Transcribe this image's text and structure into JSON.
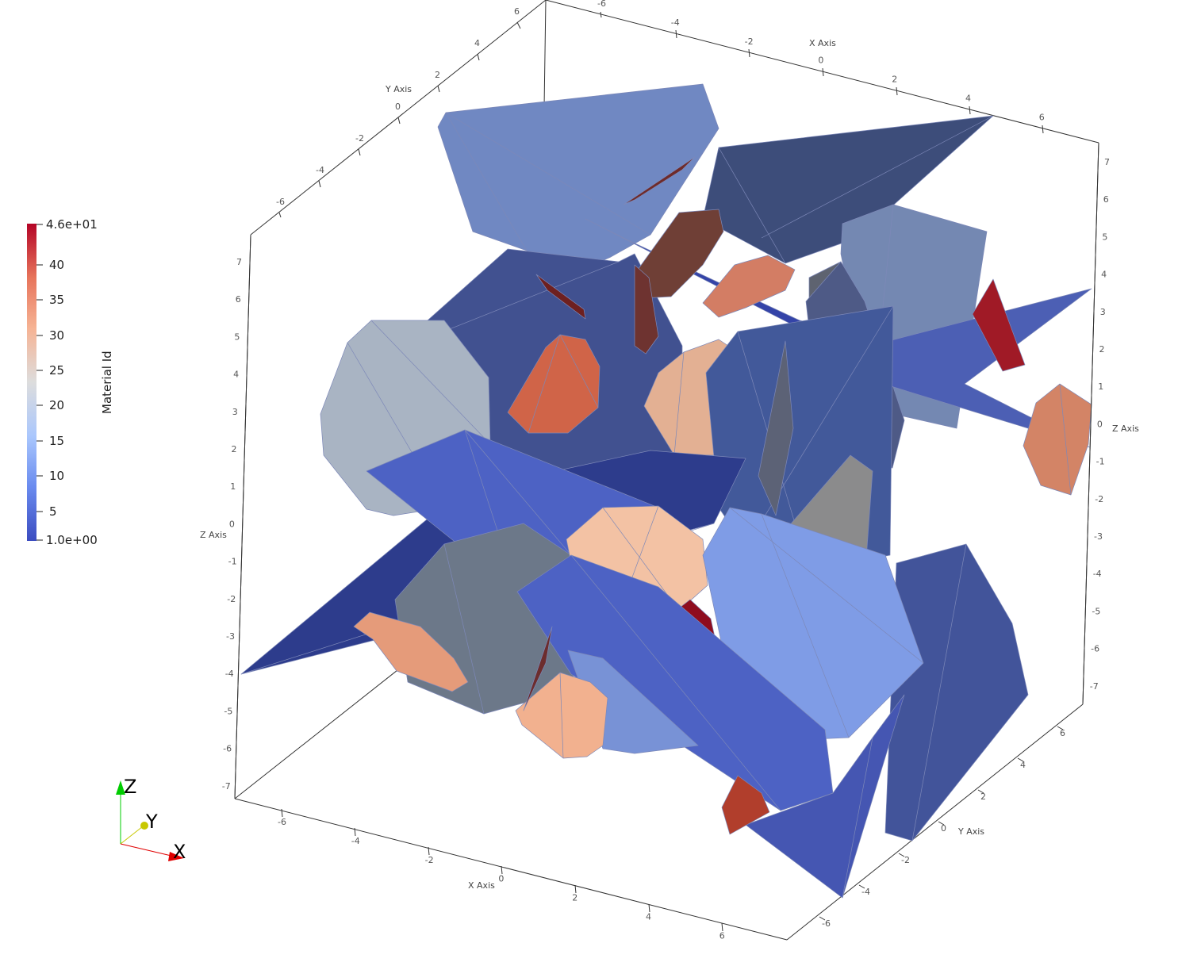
{
  "scalar_bar": {
    "title": "Material Id",
    "max_label": "4.6e+01",
    "min_label": "1.0e+00",
    "tick_labels": [
      "40",
      "35",
      "30",
      "25",
      "20",
      "15",
      "10",
      "5"
    ],
    "colors": [
      "#3b4cc0",
      "#6a8bef",
      "#aac7fd",
      "#dddddd",
      "#f6b394",
      "#e7745b",
      "#b40426"
    ]
  },
  "axes": {
    "x_title": "X Axis",
    "y_title": "Y Axis",
    "z_title": "Z Axis",
    "x_ticks_top": [
      "-6",
      "-4",
      "-2",
      "0",
      "2",
      "4",
      "6"
    ],
    "x_ticks_bottom": [
      "-6",
      "-4",
      "-2",
      "0",
      "2",
      "4",
      "6"
    ],
    "y_ticks_left": [
      "-6",
      "-4",
      "-2",
      "0",
      "2",
      "4",
      "6"
    ],
    "y_ticks_right": [
      "-6",
      "-4",
      "-2",
      "0",
      "2",
      "4",
      "6"
    ],
    "z_ticks_left": [
      "7",
      "6",
      "5",
      "4",
      "3",
      "2",
      "1",
      "0",
      "-1",
      "-2",
      "-3",
      "-4",
      "-5",
      "-6",
      "-7"
    ],
    "z_ticks_right": [
      "7",
      "6",
      "5",
      "4",
      "3",
      "2",
      "1",
      "0",
      "-1",
      "-2",
      "-3",
      "-4",
      "-5",
      "-6",
      "-7"
    ]
  },
  "orientation": {
    "x_label": "X",
    "y_label": "Y",
    "z_label": "Z",
    "x_color": "#ff0000",
    "y_color": "#ffff00",
    "z_color": "#00ff00"
  }
}
